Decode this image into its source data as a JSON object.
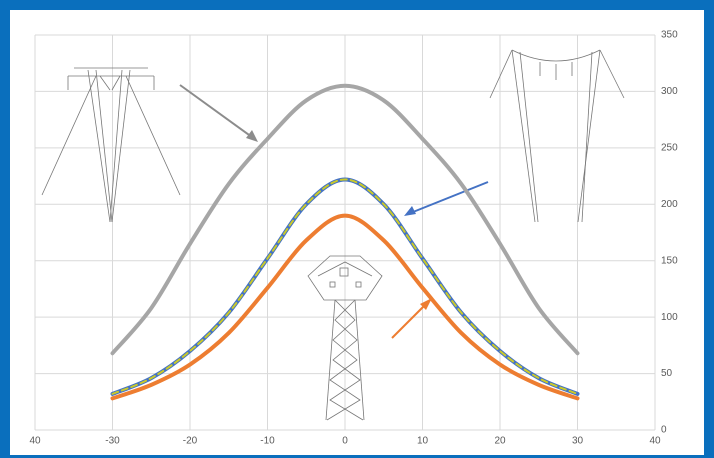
{
  "chart_data": {
    "type": "line",
    "x": [
      -30,
      -25,
      -20,
      -15,
      -10,
      -5,
      0,
      5,
      10,
      15,
      20,
      25,
      30
    ],
    "series": [
      {
        "color": "#a6a6a6",
        "values": [
          68,
          108,
          165,
          218,
          258,
          292,
          305,
          292,
          258,
          218,
          165,
          108,
          68
        ]
      },
      {
        "color": "#4472c4",
        "values": [
          32,
          46,
          70,
          104,
          152,
          200,
          222,
          200,
          152,
          104,
          70,
          46,
          32
        ]
      },
      {
        "color": "#c9c92a",
        "dash": true,
        "values": [
          32,
          46,
          70,
          104,
          152,
          200,
          222,
          200,
          152,
          104,
          70,
          46,
          32
        ]
      },
      {
        "color": "#ed7d31",
        "values": [
          28,
          40,
          58,
          86,
          126,
          168,
          190,
          168,
          126,
          86,
          58,
          40,
          28
        ]
      }
    ],
    "xlim": [
      -40,
      40
    ],
    "xticks": [
      {
        "value": -40,
        "label": "40"
      },
      -30,
      -20,
      -10,
      0,
      10,
      20,
      30,
      40
    ],
    "ylim": [
      0,
      350
    ],
    "yticks": [
      0,
      50,
      100,
      150,
      200,
      250,
      300,
      350
    ],
    "grid": true
  }
}
